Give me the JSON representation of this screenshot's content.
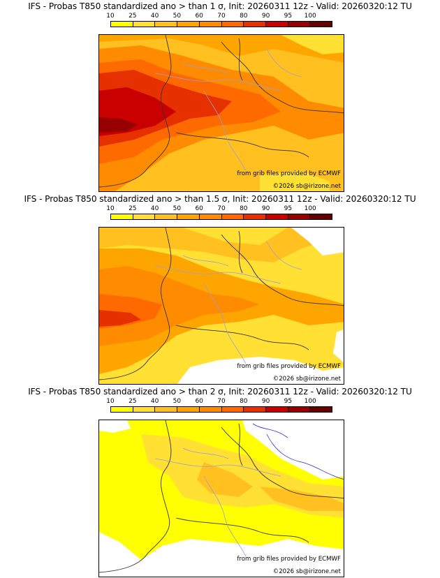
{
  "legend": {
    "ticks": [
      "10",
      "25",
      "40",
      "50",
      "60",
      "70",
      "80",
      "90",
      "95",
      "100"
    ],
    "colors": [
      "#ffff00",
      "#ffe033",
      "#ffc020",
      "#ffa500",
      "#ff8c00",
      "#ff6a00",
      "#e63000",
      "#c80000",
      "#960000",
      "#640000"
    ]
  },
  "credits": {
    "ecmwf": "from grib files provided by ECMWF",
    "copyright": "©2026 sb@irizone.net"
  },
  "panels": [
    {
      "title": "IFS - Probas T850  standardized ano > than 1 σ, Init: 20260311 12z - Valid: 20260320:12 TU",
      "level": "high"
    },
    {
      "title": "IFS - Probas T850  standardized ano > than 1.5 σ, Init: 20260311 12z - Valid: 20260320:12 TU",
      "level": "mid"
    },
    {
      "title": "IFS - Probas T850  standardized ano > than 2 σ, Init: 20260311 12z - Valid: 20260320:12 TU",
      "level": "low"
    }
  ]
}
